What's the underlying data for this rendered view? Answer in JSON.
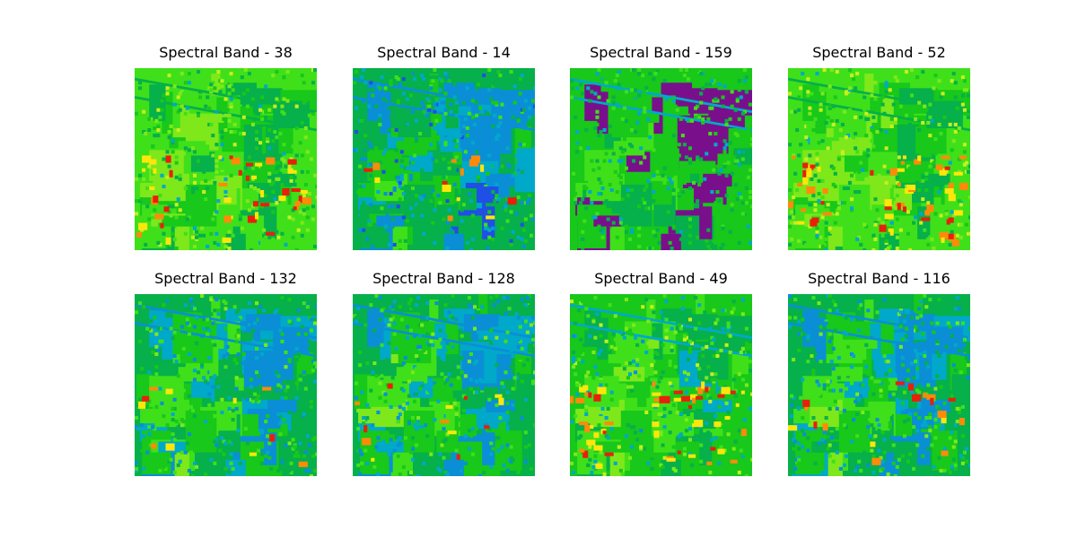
{
  "figure": {
    "colormap": "jet",
    "panels": [
      {
        "title": "Spectral Band - 38",
        "band": 38
      },
      {
        "title": "Spectral Band - 14",
        "band": 14
      },
      {
        "title": "Spectral Band - 159",
        "band": 159
      },
      {
        "title": "Spectral Band - 52",
        "band": 52
      },
      {
        "title": "Spectral Band - 132",
        "band": 132
      },
      {
        "title": "Spectral Band - 128",
        "band": 128
      },
      {
        "title": "Spectral Band - 49",
        "band": 49
      },
      {
        "title": "Spectral Band - 116",
        "band": 116
      }
    ]
  }
}
